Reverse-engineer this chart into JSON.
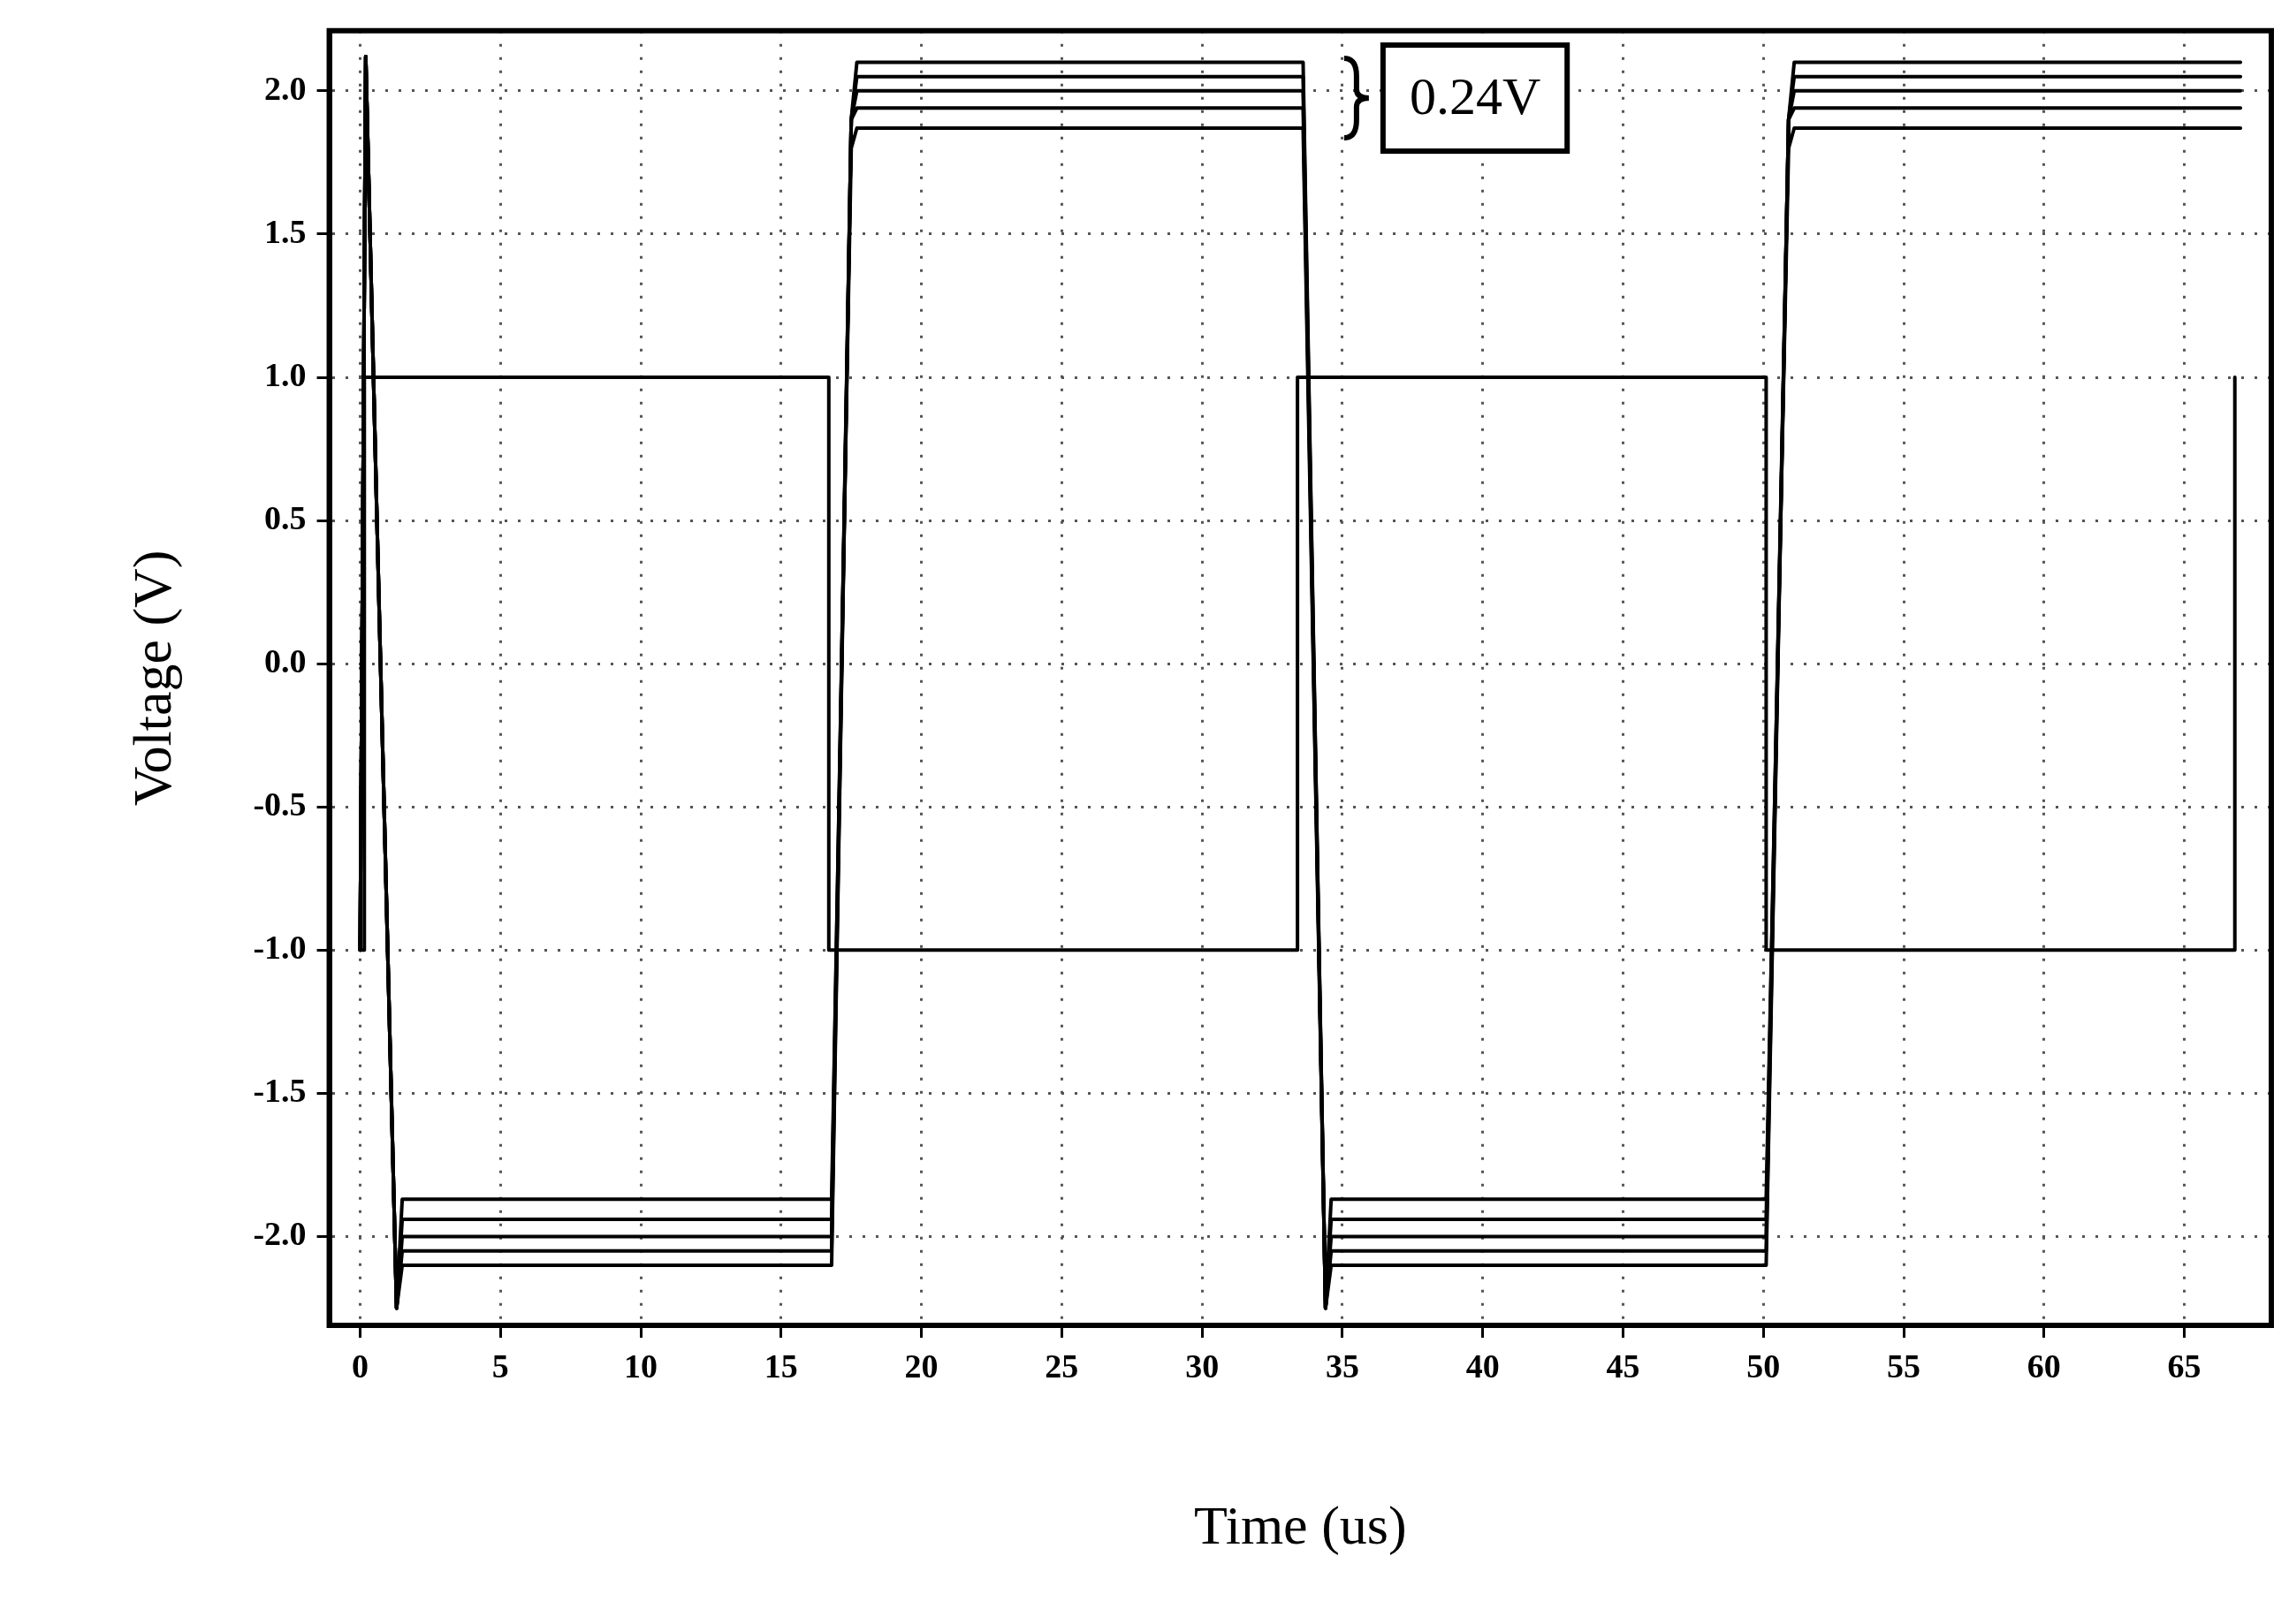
{
  "chart_data": {
    "type": "line",
    "xlabel": "Time (us)",
    "ylabel": "Voltage (V)",
    "xlim": [
      -1.1,
      68.1
    ],
    "ylim": [
      -2.31,
      2.21
    ],
    "xticks": [
      0,
      5,
      10,
      15,
      20,
      25,
      30,
      35,
      40,
      45,
      50,
      55,
      60,
      65
    ],
    "yticks": [
      {
        "value": -2,
        "label": "-2.0"
      },
      {
        "value": -1.5,
        "label": "-1.5"
      },
      {
        "value": -1,
        "label": "-1.0"
      },
      {
        "value": -0.5,
        "label": "-0.5"
      },
      {
        "value": 0,
        "label": "0.0"
      },
      {
        "value": 0.5,
        "label": "0.5"
      },
      {
        "value": 1,
        "label": "1.0"
      },
      {
        "value": 1.5,
        "label": "1.5"
      },
      {
        "value": 2,
        "label": "2.0"
      }
    ],
    "grid": true,
    "legend": false,
    "marker": "none",
    "line_style": "solid",
    "annotations": [
      "0.24V"
    ],
    "series": [
      {
        "color": "#000000",
        "x": [
          0,
          0.15,
          0.15,
          16.7,
          16.7,
          33.4,
          33.4,
          50.1,
          50.1,
          66.8,
          66.8
        ],
        "values": [
          -1,
          -1,
          1,
          1,
          -1,
          -1,
          1,
          1,
          -1,
          -1,
          1
        ]
      },
      {
        "color": "#000000",
        "x": [
          0,
          0.2,
          0.6,
          1.3,
          1.5,
          16.8,
          17.5,
          17.7,
          33.6,
          34.4,
          34.6,
          50.1,
          50.9,
          51.1,
          67.0
        ],
        "values": [
          -1,
          2.12,
          0.5,
          -2.25,
          -2.1,
          -2.1,
          1.9,
          2.1,
          2.1,
          -2.25,
          -2.1,
          -2.1,
          1.9,
          2.1,
          2.1
        ]
      },
      {
        "color": "#000000",
        "x": [
          0,
          0.2,
          0.6,
          1.3,
          1.5,
          16.8,
          17.5,
          17.7,
          33.6,
          34.4,
          34.6,
          50.1,
          50.9,
          51.1,
          67.0
        ],
        "values": [
          -1,
          2.12,
          0.5,
          -2.25,
          -2.05,
          -2.05,
          1.9,
          2.05,
          2.05,
          -2.25,
          -2.05,
          -2.05,
          1.9,
          2.05,
          2.05
        ]
      },
      {
        "color": "#000000",
        "x": [
          0,
          0.2,
          0.6,
          1.3,
          1.5,
          16.8,
          17.5,
          17.7,
          33.6,
          34.4,
          34.6,
          50.1,
          50.9,
          51.1,
          67.0
        ],
        "values": [
          -1,
          2.12,
          0.5,
          -2.25,
          -2.0,
          -2.0,
          1.9,
          2.0,
          2.0,
          -2.25,
          -2.0,
          -2.0,
          1.9,
          2.0,
          2.0
        ]
      },
      {
        "color": "#000000",
        "x": [
          0,
          0.2,
          0.6,
          1.3,
          1.5,
          16.8,
          17.5,
          17.7,
          33.6,
          34.4,
          34.6,
          50.1,
          50.9,
          51.1,
          67.0
        ],
        "values": [
          -1,
          2.12,
          0.5,
          -2.25,
          -1.94,
          -1.94,
          1.9,
          1.94,
          1.94,
          -2.25,
          -1.94,
          -1.94,
          1.9,
          1.94,
          1.94
        ]
      },
      {
        "color": "#000000",
        "x": [
          0,
          0.2,
          0.6,
          1.3,
          1.5,
          16.8,
          17.5,
          17.7,
          33.6,
          34.4,
          34.6,
          50.1,
          50.9,
          51.1,
          67.0
        ],
        "values": [
          -1,
          2.12,
          0.5,
          -2.25,
          -1.87,
          -1.87,
          1.8,
          1.87,
          1.87,
          -2.25,
          -1.87,
          -1.87,
          1.8,
          1.87,
          1.87
        ]
      }
    ]
  }
}
